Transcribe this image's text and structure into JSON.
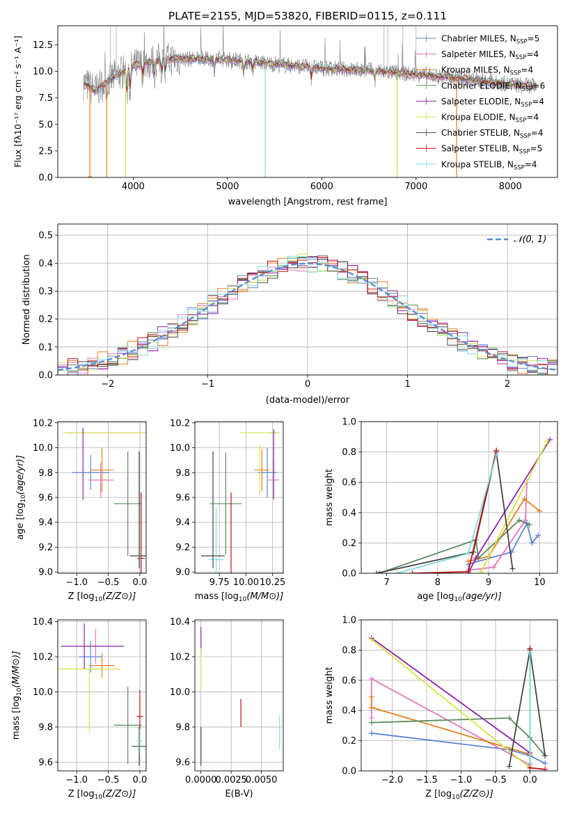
{
  "colors": {
    "chabrier_miles": "#5b84d6",
    "salpeter_miles": "#e377c2",
    "kroupa_miles": "#e6801f",
    "chabrier_elodie": "#5a8a5a",
    "salpeter_elodie": "#8f22a8",
    "kroupa_elodie": "#d5e345",
    "chabrier_stelib": "#444444",
    "salpeter_stelib": "#bb1111",
    "kroupa_stelib": "#7fdddd",
    "spectrum": "#808080",
    "normal": "#5b8ad6",
    "grid": "#b0b0b0"
  },
  "chart_data": [
    {
      "id": "spectrum",
      "type": "line",
      "title": "PLATE=2155, MJD=53820, FIBERID=0115, z=0.111",
      "xlabel": "wavelength [Angstrom, rest frame]",
      "ylabel": "Flux [fλ10⁻¹⁷ erg cm⁻² s⁻¹ A⁻¹]",
      "xlim": [
        3200,
        8500
      ],
      "ylim": [
        0,
        14.3
      ],
      "xticks": [
        4000,
        5000,
        6000,
        7000,
        8000
      ],
      "yticks": [
        0.0,
        2.5,
        5.0,
        7.5,
        10.0,
        12.5
      ],
      "grid": false,
      "legend_position": "upper right",
      "legend": [
        {
          "label": "Chabrier MILES, N_SSP=5",
          "text": "Chabrier MILES, N",
          "sub": "SSP",
          "tail": "=5",
          "color_key": "chabrier_miles"
        },
        {
          "label": "Salpeter MILES, N_SSP=4",
          "text": "Salpeter MILES, N",
          "sub": "SSP",
          "tail": "=4",
          "color_key": "salpeter_miles"
        },
        {
          "label": "Kroupa MILES, N_SSP=4",
          "text": "Kroupa MILES, N",
          "sub": "SSP",
          "tail": "=4",
          "color_key": "kroupa_miles"
        },
        {
          "label": "Chabrier ELODIE, N_SSP=6",
          "text": "Chabrier ELODIE, N",
          "sub": "SSP",
          "tail": "=6",
          "color_key": "chabrier_elodie"
        },
        {
          "label": "Salpeter ELODIE, N_SSP=4",
          "text": "Salpeter ELODIE, N",
          "sub": "SSP",
          "tail": "=4",
          "color_key": "salpeter_elodie"
        },
        {
          "label": "Kroupa ELODIE, N_SSP=4",
          "text": "Kroupa ELODIE, N",
          "sub": "SSP",
          "tail": "=4",
          "color_key": "kroupa_elodie"
        },
        {
          "label": "Chabrier STELIB, N_SSP=4",
          "text": "Chabrier STELIB, N",
          "sub": "SSP",
          "tail": "=4",
          "color_key": "chabrier_stelib"
        },
        {
          "label": "Salpeter STELIB, N_SSP=5",
          "text": "Salpeter STELIB, N",
          "sub": "SSP",
          "tail": "=5",
          "color_key": "salpeter_stelib"
        },
        {
          "label": "Kroupa STELIB, N_SSP=4",
          "text": "Kroupa STELIB, N",
          "sub": "SSP",
          "tail": "=4",
          "color_key": "kroupa_stelib"
        }
      ],
      "continuum": {
        "x": [
          3470,
          3600,
          3800,
          4000,
          4300,
          4500,
          5000,
          5500,
          6000,
          6500,
          7000,
          7500,
          8000,
          8280
        ],
        "y": [
          8.9,
          8.2,
          9.5,
          10.5,
          11.1,
          11.2,
          11.1,
          10.7,
          10.3,
          10.1,
          9.7,
          9.3,
          8.8,
          8.6
        ]
      },
      "dropouts": [
        {
          "x": 3540,
          "color_key": "kroupa_miles"
        },
        {
          "x": 3720,
          "color_key": "kroupa_miles"
        },
        {
          "x": 3920,
          "color_key": "kroupa_elodie"
        },
        {
          "x": 5400,
          "color_key": "kroupa_stelib"
        },
        {
          "x": 6800,
          "color_key": "kroupa_elodie"
        },
        {
          "x": 7430,
          "color_key": "kroupa_miles"
        }
      ]
    },
    {
      "id": "residuals",
      "type": "step",
      "xlabel": "(data-model)/error",
      "ylabel": "Normed distribution",
      "xlim": [
        -2.5,
        2.5
      ],
      "ylim": [
        0,
        0.54
      ],
      "xticks": [
        -2,
        -1,
        0,
        1,
        2
      ],
      "yticks": [
        0.0,
        0.1,
        0.2,
        0.3,
        0.4,
        0.5
      ],
      "grid": true,
      "legend_position": "upper right",
      "legend_label": "𝒩(0, 1)",
      "bin_width": 0.1,
      "bin_start": -2.5
    },
    {
      "id": "age-vs-Z",
      "type": "errorbar",
      "xlabel": "Z [log10(Z/Z⊙)]",
      "ylabel": "age [log10(age/yr)]",
      "xlim": [
        -1.3,
        0.1
      ],
      "ylim": [
        8.99,
        10.21
      ],
      "xticks": [
        -1.0,
        -0.5,
        0.0
      ],
      "yticks": [
        9.0,
        9.2,
        9.4,
        9.6,
        9.8,
        10.0,
        10.2
      ],
      "grid": true,
      "points": [
        {
          "color_key": "chabrier_miles",
          "x": -0.78,
          "xerr": 0.3,
          "y": 9.8,
          "yerr": 0.14
        },
        {
          "color_key": "salpeter_miles",
          "x": -0.62,
          "xerr": 0.2,
          "y": 9.74,
          "yerr": 0.14
        },
        {
          "color_key": "kroupa_miles",
          "x": -0.6,
          "xerr": 0.18,
          "y": 9.82,
          "yerr": 0.18
        },
        {
          "color_key": "chabrier_elodie",
          "x": -0.19,
          "xerr": 0.22,
          "y": 9.55,
          "yerr": 0.42
        },
        {
          "color_key": "salpeter_elodie",
          "x": -0.45,
          "xerr": 0.7,
          "y": 10.12,
          "yerr": 0.0
        },
        {
          "color_key": "kroupa_elodie",
          "x": -0.55,
          "xerr": 0.67,
          "y": 10.12,
          "yerr": 0.0
        },
        {
          "color_key": "chabrier_stelib",
          "x": -0.01,
          "xerr": 0.15,
          "y": 9.13,
          "yerr": 0.0
        },
        {
          "color_key": "salpeter_stelib",
          "x": 0.02,
          "xerr": 0.06,
          "y": 9.11,
          "yerr": 0.53
        },
        {
          "color_key": "kroupa_stelib",
          "x": 0.0,
          "xerr": 0.02,
          "y": 9.1,
          "yerr": 0.05
        },
        {
          "color_key": "salpeter_elodie",
          "x": -0.9,
          "xerr": 0.0,
          "y": 9.87,
          "yerr": 0.29
        },
        {
          "color_key": "chabrier_stelib",
          "x": -0.01,
          "xerr": 0.0,
          "y": 9.5,
          "yerr": 0.47
        }
      ]
    },
    {
      "id": "age-vs-mass",
      "type": "errorbar",
      "xlabel": "mass [log10(M/M⊙)]",
      "ylabel": "",
      "xlim": [
        9.52,
        10.35
      ],
      "ylim": [
        8.99,
        10.21
      ],
      "xticks": [
        9.75,
        10.0,
        10.25
      ],
      "yticks": [
        9.0,
        9.2,
        9.4,
        9.6,
        9.8,
        10.0,
        10.2
      ],
      "grid": true,
      "points": [
        {
          "color_key": "chabrier_miles",
          "x": 10.2,
          "xerr": 0.09,
          "y": 9.8,
          "yerr": 0.2
        },
        {
          "color_key": "salpeter_miles",
          "x": 10.26,
          "xerr": 0.05,
          "y": 9.74,
          "yerr": 0.16
        },
        {
          "color_key": "kroupa_miles",
          "x": 10.15,
          "xerr": 0.07,
          "y": 9.82,
          "yerr": 0.17
        },
        {
          "color_key": "chabrier_elodie",
          "x": 9.81,
          "xerr": 0.15,
          "y": 9.55,
          "yerr": 0.41
        },
        {
          "color_key": "salpeter_elodie",
          "x": 10.26,
          "xerr": 0.04,
          "y": 10.12,
          "yerr": 0.0
        },
        {
          "color_key": "kroupa_elodie",
          "x": 10.13,
          "xerr": 0.19,
          "y": 10.12,
          "yerr": 0.0
        },
        {
          "color_key": "chabrier_stelib",
          "x": 9.69,
          "xerr": 0.11,
          "y": 9.13,
          "yerr": 0.0
        },
        {
          "color_key": "salpeter_stelib",
          "x": 9.86,
          "xerr": 0.0,
          "y": 9.11,
          "yerr": 0.53
        },
        {
          "color_key": "kroupa_stelib",
          "x": 9.72,
          "xerr": 0.07,
          "y": 9.1,
          "yerr": 0.42
        },
        {
          "color_key": "chabrier_stelib",
          "x": 9.69,
          "xerr": 0.0,
          "y": 9.5,
          "yerr": 0.47
        },
        {
          "color_key": "kroupa_elodie",
          "x": 10.13,
          "xerr": 0.0,
          "y": 9.82,
          "yerr": 0.2
        },
        {
          "color_key": "salpeter_elodie",
          "x": 10.26,
          "xerr": 0.0,
          "y": 9.87,
          "yerr": 0.28
        }
      ]
    },
    {
      "id": "weight-vs-age",
      "type": "line",
      "xlabel": "age [log10(age/yr)]",
      "ylabel": "mass weight",
      "xlim": [
        6.5,
        10.35
      ],
      "ylim": [
        0,
        1
      ],
      "xticks": [
        7,
        8,
        9,
        10
      ],
      "yticks": [
        0.0,
        0.2,
        0.4,
        0.6,
        0.8,
        1.0
      ],
      "grid": true,
      "series": [
        {
          "color_key": "chabrier_miles",
          "x": [
            8.6,
            9.45,
            9.75,
            9.85,
            9.97
          ],
          "y": [
            0.06,
            0.14,
            0.33,
            0.2,
            0.25
          ]
        },
        {
          "color_key": "salpeter_miles",
          "x": [
            8.6,
            9.1,
            9.72,
            9.75
          ],
          "y": [
            0.02,
            0.04,
            0.35,
            0.6
          ]
        },
        {
          "color_key": "kroupa_miles",
          "x": [
            8.6,
            9.0,
            9.7,
            10.0
          ],
          "y": [
            0.08,
            0.11,
            0.49,
            0.41
          ]
        },
        {
          "color_key": "chabrier_elodie",
          "x": [
            6.85,
            8.75,
            8.8,
            9.6,
            9.8
          ],
          "y": [
            0.0,
            0.22,
            0.1,
            0.35,
            0.32
          ]
        },
        {
          "color_key": "salpeter_elodie",
          "x": [
            8.6,
            8.75,
            10.2
          ],
          "y": [
            0.0,
            0.1,
            0.88
          ]
        },
        {
          "color_key": "kroupa_elodie",
          "x": [
            8.85,
            10.15
          ],
          "y": [
            0.01,
            0.87
          ]
        },
        {
          "color_key": "chabrier_stelib",
          "x": [
            6.8,
            8.7,
            9.15,
            9.47
          ],
          "y": [
            0.0,
            0.14,
            0.8,
            0.03
          ]
        },
        {
          "color_key": "salpeter_stelib",
          "x": [
            7.5,
            8.6,
            9.15
          ],
          "y": [
            0.0,
            0.01,
            0.81
          ]
        },
        {
          "color_key": "kroupa_stelib",
          "x": [
            7.2,
            8.6,
            9.15
          ],
          "y": [
            0.0,
            0.13,
            0.78
          ]
        }
      ]
    },
    {
      "id": "mass-vs-Z",
      "type": "errorbar",
      "xlabel": "Z [log10(Z/Z⊙)]",
      "ylabel": "mass [log10(M/M⊙)]",
      "xlim": [
        -1.3,
        0.1
      ],
      "ylim": [
        9.55,
        10.41
      ],
      "xticks": [
        -1.0,
        -0.5,
        0.0
      ],
      "yticks": [
        9.6,
        9.8,
        10.0,
        10.2,
        10.4
      ],
      "grid": true,
      "points": [
        {
          "color_key": "chabrier_miles",
          "x": -0.78,
          "xerr": 0.18,
          "y": 10.2,
          "yerr": 0.09
        },
        {
          "color_key": "salpeter_miles",
          "x": -0.7,
          "xerr": 0.06,
          "y": 10.26,
          "yerr": 0.1
        },
        {
          "color_key": "kroupa_miles",
          "x": -0.6,
          "xerr": 0.2,
          "y": 10.15,
          "yerr": 0.07
        },
        {
          "color_key": "chabrier_elodie",
          "x": -0.19,
          "xerr": 0.22,
          "y": 9.81,
          "yerr": 0.22
        },
        {
          "color_key": "salpeter_elodie",
          "x": -0.75,
          "xerr": 0.5,
          "y": 10.26,
          "yerr": 0.0
        },
        {
          "color_key": "kroupa_elodie",
          "x": -0.8,
          "xerr": 0.5,
          "y": 10.13,
          "yerr": 0.0
        },
        {
          "color_key": "chabrier_stelib",
          "x": -0.01,
          "xerr": 0.12,
          "y": 9.69,
          "yerr": 0.11
        },
        {
          "color_key": "salpeter_stelib",
          "x": 0.0,
          "xerr": 0.05,
          "y": 9.86,
          "yerr": 0.15
        },
        {
          "color_key": "kroupa_stelib",
          "x": 0.0,
          "xerr": 0.05,
          "y": 9.72,
          "yerr": 0.07
        },
        {
          "color_key": "salpeter_elodie",
          "x": -0.88,
          "xerr": 0.0,
          "y": 10.26,
          "yerr": 0.13
        },
        {
          "color_key": "kroupa_elodie",
          "x": -0.8,
          "xerr": 0.0,
          "y": 9.95,
          "yerr": 0.18
        }
      ]
    },
    {
      "id": "mass-vs-ebv",
      "type": "errorbar",
      "xlabel": "E(B-V)",
      "ylabel": "",
      "xlim": [
        -0.0005,
        0.0068
      ],
      "ylim": [
        9.55,
        10.41
      ],
      "xticks": [
        0.0,
        0.0025,
        0.005
      ],
      "xticklabels": [
        "0.0000",
        "0.0025",
        "0.0050"
      ],
      "yticks": [
        9.6,
        9.8,
        10.0,
        10.2,
        10.4
      ],
      "grid": true,
      "points": [
        {
          "color_key": "salpeter_elodie",
          "x": 0.0,
          "xerr": 0.0,
          "y": 10.29,
          "yerr": 0.08
        },
        {
          "color_key": "kroupa_elodie",
          "x": 0.0,
          "xerr": 0.0,
          "y": 10.13,
          "yerr": 0.12
        },
        {
          "color_key": "chabrier_stelib",
          "x": 0.0,
          "xerr": 0.0,
          "y": 9.69,
          "yerr": 0.11
        },
        {
          "color_key": "salpeter_stelib",
          "x": 0.0033,
          "xerr": 0.0,
          "y": 9.88,
          "yerr": 0.08
        },
        {
          "color_key": "kroupa_stelib",
          "x": 0.0065,
          "xerr": 0.0,
          "y": 9.77,
          "yerr": 0.1
        }
      ]
    },
    {
      "id": "weight-vs-Z",
      "type": "line",
      "xlabel": "Z [log10(Z/Z⊙)]",
      "ylabel": "mass weight",
      "xlim": [
        -2.45,
        0.4
      ],
      "ylim": [
        0,
        1
      ],
      "xticks": [
        -2.0,
        -1.5,
        -1.0,
        -0.5,
        0.0
      ],
      "yticks": [
        0.0,
        0.2,
        0.4,
        0.6,
        0.8,
        1.0
      ],
      "grid": true,
      "series": [
        {
          "color_key": "chabrier_miles",
          "x": [
            -2.3,
            -0.3,
            0.0,
            0.22
          ],
          "y": [
            0.25,
            0.14,
            0.1,
            0.05
          ]
        },
        {
          "color_key": "salpeter_miles",
          "x": [
            -2.3,
            -2.3,
            0.0
          ],
          "y": [
            0.35,
            0.61,
            0.04
          ]
        },
        {
          "color_key": "kroupa_miles",
          "x": [
            -2.3,
            -2.3,
            0.0
          ],
          "y": [
            0.49,
            0.42,
            0.11
          ]
        },
        {
          "color_key": "chabrier_elodie",
          "x": [
            -2.3,
            -0.3,
            0.0,
            0.22
          ],
          "y": [
            0.32,
            0.35,
            0.22,
            0.1
          ]
        },
        {
          "color_key": "salpeter_elodie",
          "x": [
            -2.3,
            0.0
          ],
          "y": [
            0.88,
            0.12
          ]
        },
        {
          "color_key": "kroupa_elodie",
          "x": [
            -2.3,
            0.0
          ],
          "y": [
            0.87,
            0.02
          ]
        },
        {
          "color_key": "chabrier_stelib",
          "x": [
            -0.3,
            0.0,
            0.22
          ],
          "y": [
            0.03,
            0.8,
            0.1
          ]
        },
        {
          "color_key": "salpeter_stelib",
          "x": [
            0.0,
            0.0,
            0.22
          ],
          "y": [
            0.81,
            0.02,
            0.01
          ]
        },
        {
          "color_key": "kroupa_stelib",
          "x": [
            0.0,
            0.0
          ],
          "y": [
            0.78,
            0.05
          ]
        }
      ]
    }
  ]
}
